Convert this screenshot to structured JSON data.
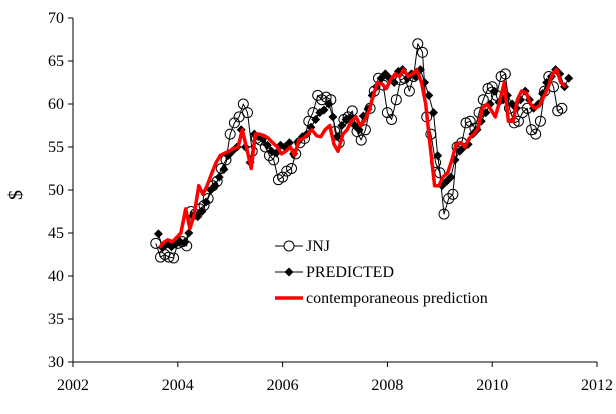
{
  "chart_data": {
    "type": "line",
    "title": "",
    "xlabel": "",
    "ylabel": "$",
    "xlim": [
      2002,
      2012
    ],
    "ylim": [
      30,
      70
    ],
    "x_ticks": [
      "2002",
      "2004",
      "2006",
      "2008",
      "2010",
      "2012"
    ],
    "y_ticks": [
      "30",
      "35",
      "40",
      "45",
      "50",
      "55",
      "60",
      "65",
      "70"
    ],
    "grid": false,
    "legend": "center",
    "series": [
      {
        "name": "JNJ",
        "color": "#000000",
        "marker": "open-circle",
        "x": [
          2003.58,
          2003.67,
          2003.75,
          2003.83,
          2003.92,
          2004.0,
          2004.08,
          2004.17,
          2004.25,
          2004.33,
          2004.42,
          2004.5,
          2004.58,
          2004.67,
          2004.75,
          2004.83,
          2004.92,
          2005.0,
          2005.08,
          2005.17,
          2005.25,
          2005.33,
          2005.42,
          2005.5,
          2005.58,
          2005.67,
          2005.75,
          2005.83,
          2005.92,
          2006.0,
          2006.08,
          2006.17,
          2006.25,
          2006.33,
          2006.42,
          2006.5,
          2006.58,
          2006.67,
          2006.75,
          2006.83,
          2006.92,
          2007.0,
          2007.08,
          2007.17,
          2007.25,
          2007.33,
          2007.42,
          2007.5,
          2007.58,
          2007.67,
          2007.75,
          2007.83,
          2007.92,
          2008.0,
          2008.08,
          2008.17,
          2008.25,
          2008.33,
          2008.42,
          2008.5,
          2008.58,
          2008.67,
          2008.75,
          2008.83,
          2008.92,
          2009.0,
          2009.08,
          2009.17,
          2009.25,
          2009.33,
          2009.42,
          2009.5,
          2009.58,
          2009.67,
          2009.75,
          2009.83,
          2009.92,
          2010.0,
          2010.08,
          2010.17,
          2010.25,
          2010.33,
          2010.42,
          2010.5,
          2010.58,
          2010.67,
          2010.75,
          2010.83,
          2010.92,
          2011.0,
          2011.08,
          2011.17,
          2011.25,
          2011.33
        ],
        "values": [
          43.8,
          42.2,
          42.5,
          42.2,
          42.1,
          43.8,
          44.0,
          43.5,
          47.5,
          47.2,
          47.8,
          48.2,
          49.0,
          50.5,
          51.0,
          52.5,
          53.5,
          56.5,
          57.8,
          58.5,
          60.0,
          59.0,
          54.5,
          56.0,
          55.8,
          55.0,
          54.0,
          53.5,
          51.2,
          51.5,
          52.2,
          52.5,
          54.2,
          55.5,
          56.0,
          58.0,
          59.0,
          61.0,
          60.5,
          60.8,
          60.5,
          56.8,
          55.5,
          58.2,
          58.5,
          59.2,
          56.8,
          55.8,
          57.0,
          59.5,
          61.5,
          63.0,
          62.2,
          59.0,
          58.2,
          60.5,
          62.8,
          63.0,
          61.5,
          63.2,
          67.0,
          66.0,
          58.5,
          56.5,
          53.2,
          52.0,
          47.2,
          49.0,
          49.5,
          55.0,
          55.5,
          57.8,
          58.0,
          57.2,
          59.0,
          60.5,
          61.8,
          62.0,
          61.0,
          63.2,
          63.5,
          59.5,
          57.8,
          58.0,
          59.0,
          59.5,
          57.0,
          56.5,
          58.0,
          61.5,
          63.2,
          62.0,
          59.2,
          59.5
        ]
      },
      {
        "name": "PREDICTED",
        "color": "#000000",
        "marker": "filled-diamond",
        "x": [
          2003.63,
          2003.71,
          2003.79,
          2003.88,
          2003.96,
          2004.04,
          2004.13,
          2004.21,
          2004.29,
          2004.38,
          2004.46,
          2004.54,
          2004.63,
          2004.71,
          2004.79,
          2004.88,
          2004.96,
          2005.04,
          2005.13,
          2005.21,
          2005.29,
          2005.38,
          2005.46,
          2005.54,
          2005.63,
          2005.71,
          2005.79,
          2005.88,
          2005.96,
          2006.04,
          2006.13,
          2006.21,
          2006.29,
          2006.38,
          2006.46,
          2006.54,
          2006.63,
          2006.71,
          2006.79,
          2006.88,
          2006.96,
          2007.04,
          2007.13,
          2007.21,
          2007.29,
          2007.38,
          2007.46,
          2007.54,
          2007.63,
          2007.71,
          2007.79,
          2007.88,
          2007.96,
          2008.04,
          2008.13,
          2008.21,
          2008.29,
          2008.38,
          2008.46,
          2008.54,
          2008.63,
          2008.71,
          2008.79,
          2008.88,
          2008.96,
          2009.04,
          2009.13,
          2009.21,
          2009.29,
          2009.38,
          2009.46,
          2009.54,
          2009.63,
          2009.71,
          2009.79,
          2009.88,
          2009.96,
          2010.04,
          2010.13,
          2010.21,
          2010.29,
          2010.38,
          2010.46,
          2010.54,
          2010.63,
          2010.71,
          2010.79,
          2010.88,
          2010.96,
          2011.04,
          2011.13,
          2011.21,
          2011.29,
          2011.38,
          2011.46
        ],
        "values": [
          44.9,
          43.3,
          43.7,
          43.4,
          43.7,
          44.0,
          43.9,
          45.0,
          47.0,
          46.9,
          47.5,
          48.6,
          50.0,
          50.5,
          51.5,
          52.4,
          54.0,
          54.5,
          55.0,
          57.0,
          55.0,
          53.2,
          56.5,
          56.2,
          56.0,
          55.2,
          54.5,
          54.3,
          55.2,
          55.0,
          55.5,
          54.2,
          55.6,
          56.2,
          56.5,
          57.3,
          58.2,
          59.0,
          59.3,
          60.0,
          58.5,
          56.2,
          57.5,
          58.2,
          58.4,
          57.5,
          57.0,
          58.6,
          59.4,
          61.0,
          62.0,
          63.0,
          63.5,
          63.0,
          62.5,
          63.8,
          64.0,
          63.0,
          63.5,
          63.2,
          64.0,
          62.5,
          61.0,
          59.0,
          54.0,
          50.5,
          51.0,
          51.5,
          53.5,
          54.5,
          55.0,
          55.3,
          56.5,
          57.0,
          58.0,
          59.0,
          60.0,
          61.5,
          60.2,
          60.5,
          61.0,
          60.0,
          59.5,
          60.5,
          61.5,
          60.5,
          59.5,
          60.0,
          61.2,
          62.5,
          63.2,
          64.0,
          63.5,
          62.0,
          63.0
        ]
      },
      {
        "name": "contemporaneous prediction",
        "color": "#ff0000",
        "marker": "none",
        "x": [
          2003.65,
          2003.73,
          2003.81,
          2003.9,
          2003.98,
          2004.06,
          2004.15,
          2004.23,
          2004.31,
          2004.4,
          2004.48,
          2004.56,
          2004.65,
          2004.73,
          2004.81,
          2004.9,
          2004.98,
          2005.06,
          2005.15,
          2005.23,
          2005.31,
          2005.4,
          2005.48,
          2005.56,
          2005.65,
          2005.73,
          2005.81,
          2005.9,
          2005.98,
          2006.06,
          2006.15,
          2006.23,
          2006.31,
          2006.4,
          2006.48,
          2006.56,
          2006.65,
          2006.73,
          2006.81,
          2006.9,
          2006.98,
          2007.06,
          2007.15,
          2007.23,
          2007.31,
          2007.4,
          2007.48,
          2007.56,
          2007.65,
          2007.73,
          2007.81,
          2007.9,
          2007.98,
          2008.06,
          2008.15,
          2008.23,
          2008.31,
          2008.4,
          2008.48,
          2008.56,
          2008.65,
          2008.73,
          2008.81,
          2008.9,
          2008.98,
          2009.06,
          2009.15,
          2009.23,
          2009.31,
          2009.4,
          2009.48,
          2009.56,
          2009.65,
          2009.73,
          2009.81,
          2009.9,
          2009.98,
          2010.06,
          2010.15,
          2010.23,
          2010.31,
          2010.4,
          2010.48,
          2010.56,
          2010.65,
          2010.73,
          2010.81,
          2010.9,
          2010.98,
          2011.06,
          2011.15,
          2011.23,
          2011.31,
          2011.4
        ],
        "values": [
          43.3,
          43.9,
          44.2,
          44.0,
          44.5,
          45.0,
          47.8,
          45.5,
          47.0,
          50.5,
          49.5,
          50.5,
          52.0,
          53.2,
          54.0,
          54.3,
          54.5,
          54.8,
          55.0,
          57.0,
          55.0,
          52.5,
          56.5,
          56.5,
          56.3,
          56.0,
          55.5,
          55.0,
          54.2,
          54.5,
          55.0,
          54.0,
          55.8,
          56.0,
          56.5,
          57.0,
          56.3,
          56.2,
          57.0,
          57.5,
          55.3,
          54.5,
          56.5,
          57.0,
          58.0,
          58.5,
          57.5,
          58.0,
          59.2,
          61.0,
          62.5,
          62.3,
          61.8,
          62.8,
          63.5,
          63.2,
          64.0,
          63.2,
          63.5,
          64.0,
          62.5,
          60.0,
          55.5,
          50.5,
          50.5,
          51.5,
          52.0,
          53.5,
          55.3,
          55.5,
          55.0,
          56.0,
          56.5,
          57.2,
          59.5,
          60.0,
          59.3,
          58.5,
          60.5,
          62.5,
          58.0,
          58.0,
          60.5,
          61.5,
          61.3,
          60.0,
          59.5,
          59.8,
          60.8,
          61.8,
          63.5,
          64.0,
          62.5,
          62.0
        ]
      }
    ]
  }
}
